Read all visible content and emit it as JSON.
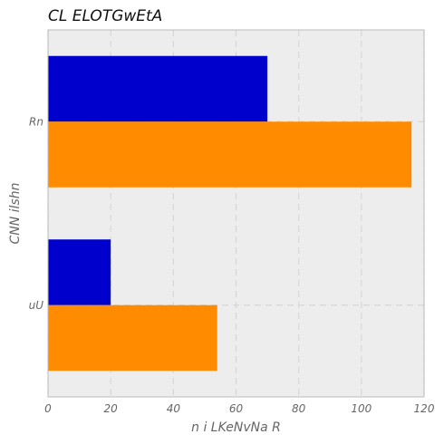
{
  "chart_data": {
    "type": "bar",
    "orientation": "horizontal",
    "title": "CL  ELOTGwEtA",
    "xlabel": "n i LKeNvNa  R",
    "ylabel": "CNN  ilshn",
    "categories": [
      "Rn",
      "uU"
    ],
    "series": [
      {
        "values": [
          70,
          20
        ],
        "color": "#0000cd"
      },
      {
        "values": [
          116,
          54
        ],
        "color": "#ff8c00"
      }
    ],
    "xlim": [
      0,
      120
    ],
    "xticks": [
      0,
      20,
      40,
      60,
      80,
      100,
      120
    ],
    "grid": true,
    "legend": "none",
    "colors": {
      "plot_background": "#ededed",
      "grid": "#d6d6d6",
      "axis_text": "#666666"
    }
  }
}
